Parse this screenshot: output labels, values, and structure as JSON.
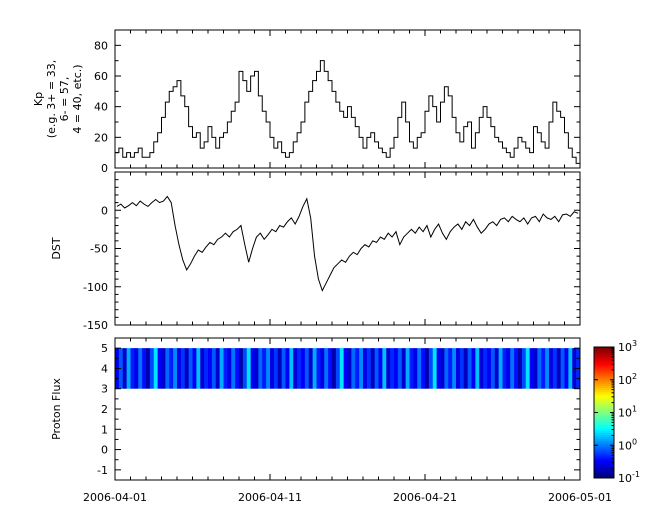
{
  "figure": {
    "background": "#ffffff",
    "axis_color": "#000000",
    "line_color": "#000000"
  },
  "xaxis": {
    "range_days": [
      0,
      30
    ],
    "major_tick_days": [
      0,
      10,
      20,
      30
    ],
    "minor_tick_every_days": 1,
    "tick_labels": [
      "2006-04-01",
      "2006-04-11",
      "2006-04-21",
      "2006-05-01"
    ]
  },
  "colorbar": {
    "label_base": "10",
    "exponent_ticks": [
      3,
      2,
      1,
      0,
      -1
    ]
  },
  "chart_data": [
    {
      "name": "kp",
      "type": "step",
      "ylabel_lines": [
        "Kp",
        "(e.g. 3+ = 33,",
        "6- = 57,",
        "4 = 40, etc.)"
      ],
      "ylim": [
        0,
        90
      ],
      "yticks_major": [
        0,
        20,
        40,
        60,
        80
      ],
      "yticks_labeled": [
        0,
        20,
        40,
        60,
        80
      ],
      "ytick_minor_step": 10,
      "samples_per_day": 4,
      "values": [
        10,
        13,
        7,
        10,
        7,
        10,
        13,
        7,
        7,
        10,
        17,
        23,
        33,
        43,
        50,
        53,
        57,
        47,
        40,
        27,
        20,
        23,
        13,
        17,
        27,
        20,
        13,
        20,
        23,
        30,
        37,
        43,
        63,
        57,
        50,
        60,
        63,
        47,
        37,
        30,
        20,
        13,
        17,
        10,
        7,
        10,
        17,
        23,
        30,
        43,
        50,
        57,
        63,
        70,
        63,
        57,
        50,
        43,
        37,
        33,
        40,
        33,
        27,
        20,
        13,
        20,
        23,
        17,
        13,
        10,
        7,
        13,
        20,
        33,
        43,
        30,
        17,
        13,
        20,
        23,
        37,
        47,
        40,
        30,
        43,
        53,
        47,
        33,
        23,
        17,
        27,
        30,
        13,
        23,
        33,
        40,
        33,
        27,
        20,
        17,
        13,
        10,
        7,
        13,
        20,
        17,
        13,
        10,
        27,
        23,
        17,
        13,
        30,
        43,
        37,
        33,
        23,
        13,
        7,
        3
      ]
    },
    {
      "name": "dst",
      "type": "line",
      "ylabel": "DST",
      "ylim": [
        -150,
        50
      ],
      "yticks_major": [
        -150,
        -100,
        -50,
        0,
        50
      ],
      "yticks_labeled": [
        -150,
        -100,
        -50,
        0
      ],
      "ytick_minor_step": 10,
      "samples_per_day": 4,
      "values": [
        5,
        8,
        3,
        6,
        10,
        6,
        12,
        8,
        5,
        10,
        14,
        10,
        12,
        18,
        10,
        -20,
        -45,
        -65,
        -78,
        -70,
        -60,
        -52,
        -55,
        -48,
        -42,
        -45,
        -38,
        -35,
        -30,
        -35,
        -28,
        -25,
        -20,
        -45,
        -68,
        -50,
        -35,
        -30,
        -38,
        -32,
        -25,
        -28,
        -20,
        -22,
        -15,
        -10,
        -18,
        -8,
        5,
        15,
        -10,
        -60,
        -90,
        -105,
        -95,
        -85,
        -75,
        -70,
        -65,
        -68,
        -60,
        -55,
        -58,
        -50,
        -45,
        -48,
        -40,
        -42,
        -35,
        -38,
        -30,
        -35,
        -28,
        -45,
        -35,
        -30,
        -25,
        -30,
        -22,
        -28,
        -20,
        -35,
        -25,
        -18,
        -30,
        -38,
        -28,
        -22,
        -18,
        -25,
        -15,
        -20,
        -12,
        -22,
        -30,
        -25,
        -18,
        -15,
        -20,
        -12,
        -10,
        -15,
        -8,
        -12,
        -15,
        -10,
        -18,
        -10,
        -8,
        -15,
        -5,
        -10,
        -12,
        -8,
        -15,
        -6,
        -5,
        -8,
        -2,
        -4
      ]
    },
    {
      "name": "proton_flux",
      "type": "heatmap",
      "ylabel": "Proton Flux",
      "ylim": [
        -1.5,
        5.5
      ],
      "yticks_major": [
        -1,
        0,
        1,
        2,
        3,
        4,
        5
      ],
      "yticks_labeled": [
        -1,
        0,
        1,
        2,
        3,
        4,
        5
      ],
      "ytick_minor_step": 0.5,
      "band_y": [
        3,
        5
      ],
      "color_scale": "log",
      "clim": [
        0.1,
        1000
      ],
      "colormap": "jet",
      "samples_per_day": 4,
      "values": [
        0.3,
        0.7,
        0.2,
        1.5,
        0.4,
        0.25,
        0.9,
        0.35,
        0.15,
        0.6,
        2.5,
        0.3,
        0.2,
        0.8,
        0.4,
        1.1,
        0.25,
        0.5,
        0.18,
        0.7,
        0.3,
        1.8,
        0.22,
        0.45,
        0.3,
        0.7,
        0.2,
        1.5,
        0.4,
        0.25,
        0.9,
        0.35,
        0.15,
        0.6,
        2.5,
        0.3,
        0.2,
        0.8,
        0.4,
        1.1,
        0.25,
        0.5,
        0.18,
        0.7,
        0.3,
        1.8,
        0.22,
        0.45,
        0.3,
        0.7,
        0.2,
        1.5,
        0.4,
        0.25,
        0.9,
        0.35,
        0.15,
        0.6,
        2.5,
        0.3,
        0.2,
        0.8,
        0.4,
        1.1,
        0.25,
        0.5,
        0.18,
        0.7,
        0.3,
        1.8,
        0.22,
        0.45,
        0.3,
        0.7,
        0.2,
        1.5,
        0.4,
        0.25,
        0.9,
        0.35,
        0.15,
        0.6,
        2.5,
        0.3,
        0.2,
        0.8,
        0.4,
        1.1,
        0.25,
        0.5,
        0.18,
        0.7,
        0.3,
        1.8,
        0.22,
        0.45,
        0.3,
        0.7,
        0.2,
        1.5,
        0.4,
        0.25,
        0.9,
        0.35,
        0.15,
        0.6,
        2.5,
        0.3,
        0.2,
        0.8,
        0.4,
        1.1,
        0.25,
        0.5,
        0.18,
        0.7,
        0.3,
        1.8,
        0.22,
        0.45
      ]
    }
  ]
}
